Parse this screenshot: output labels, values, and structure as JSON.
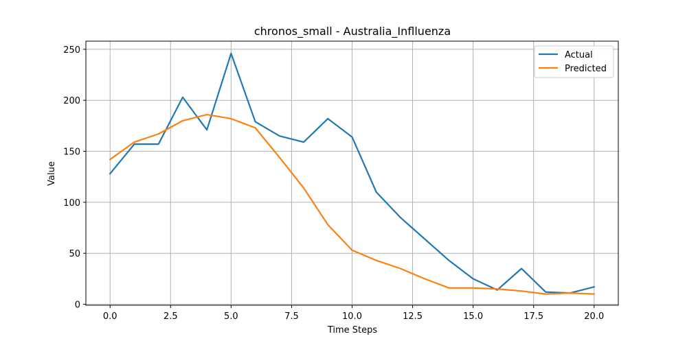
{
  "chart_data": {
    "type": "line",
    "title": "chronos_small - Australia_Inflluenza",
    "xlabel": "Time Steps",
    "ylabel": "Value",
    "xlim": [
      -1,
      21
    ],
    "ylim": [
      -1,
      258
    ],
    "xticks": [
      0,
      2.5,
      5,
      7.5,
      10,
      12.5,
      15,
      17.5,
      20
    ],
    "xtick_labels": [
      "0.0",
      "2.5",
      "5.0",
      "7.5",
      "10.0",
      "12.5",
      "15.0",
      "17.5",
      "20.0"
    ],
    "yticks": [
      0,
      50,
      100,
      150,
      200,
      250
    ],
    "ytick_labels": [
      "0",
      "50",
      "100",
      "150",
      "200",
      "250"
    ],
    "grid": true,
    "legend_position": "top-right",
    "x": [
      0,
      1,
      2,
      3,
      4,
      5,
      6,
      7,
      8,
      9,
      10,
      11,
      12,
      13,
      14,
      15,
      16,
      17,
      18,
      19,
      20
    ],
    "series": [
      {
        "name": "Actual",
        "color": "#1f77b4",
        "values": [
          128,
          157,
          157,
          203,
          171,
          246,
          179,
          165,
          159,
          182,
          164,
          110,
          85,
          64,
          43,
          25,
          14,
          35,
          12,
          11,
          17
        ]
      },
      {
        "name": "Predicted",
        "color": "#ff7f0e",
        "values": [
          142,
          159,
          167,
          180,
          186,
          182,
          173,
          144,
          114,
          78,
          53,
          43,
          35,
          25,
          16,
          16,
          15,
          13,
          10,
          11,
          10
        ]
      }
    ]
  }
}
